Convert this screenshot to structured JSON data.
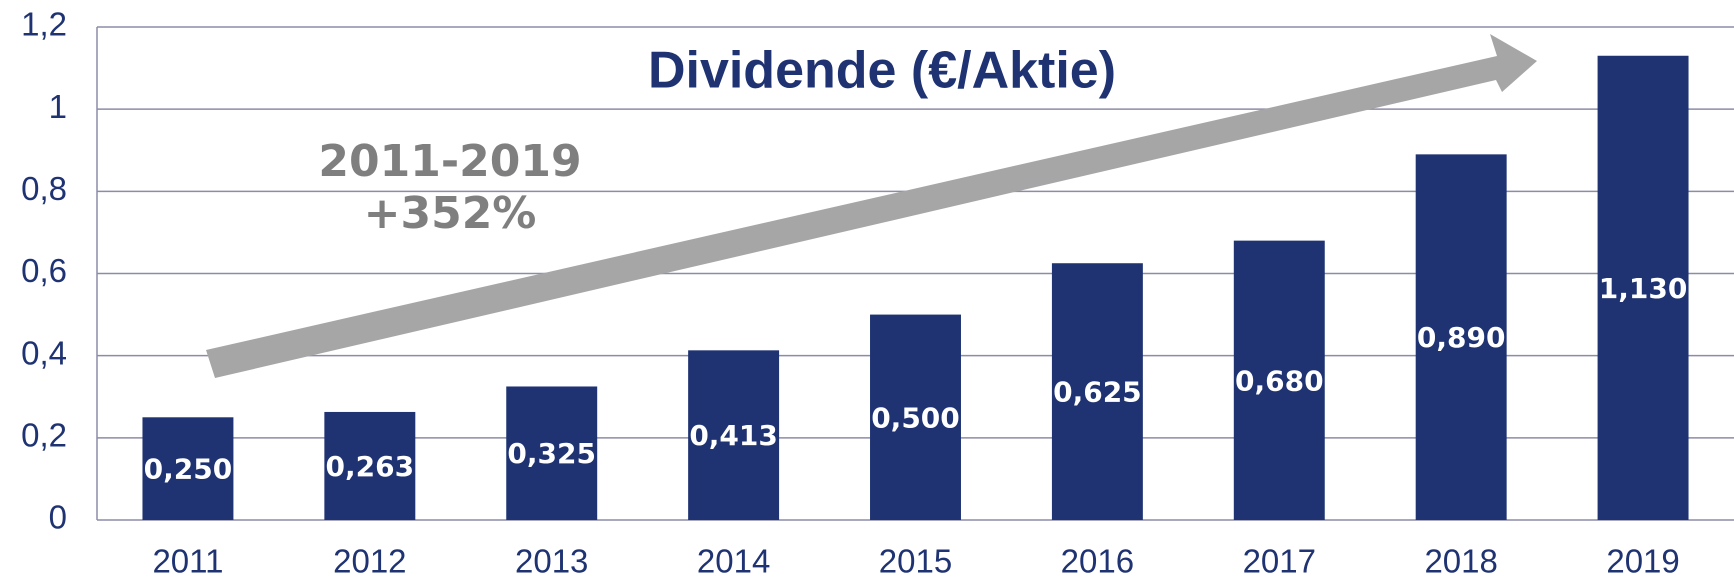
{
  "chart_data": {
    "type": "bar",
    "title": "Dividende (€/Aktie)",
    "annotations": [
      "2011-2019",
      "+352%"
    ],
    "categories": [
      "2011",
      "2012",
      "2013",
      "2014",
      "2015",
      "2016",
      "2017",
      "2018",
      "2019"
    ],
    "values": [
      0.25,
      0.263,
      0.325,
      0.413,
      0.5,
      0.625,
      0.68,
      0.89,
      1.13
    ],
    "value_labels": [
      "0,250",
      "0,263",
      "0,325",
      "0,413",
      "0,500",
      "0,625",
      "0,680",
      "0,890",
      "1,130"
    ],
    "color": "#1f3372",
    "ylim": [
      0,
      1.2
    ],
    "yticks": [
      0,
      {
        "value": 0.2,
        "label": "0,2"
      },
      {
        "value": 0.4,
        "label": "0,4"
      },
      {
        "value": 0.6,
        "label": "0,6"
      },
      {
        "value": 0.8,
        "label": "0,8"
      },
      1,
      {
        "value": 1.2,
        "label": "1,2"
      }
    ],
    "grid": true
  }
}
